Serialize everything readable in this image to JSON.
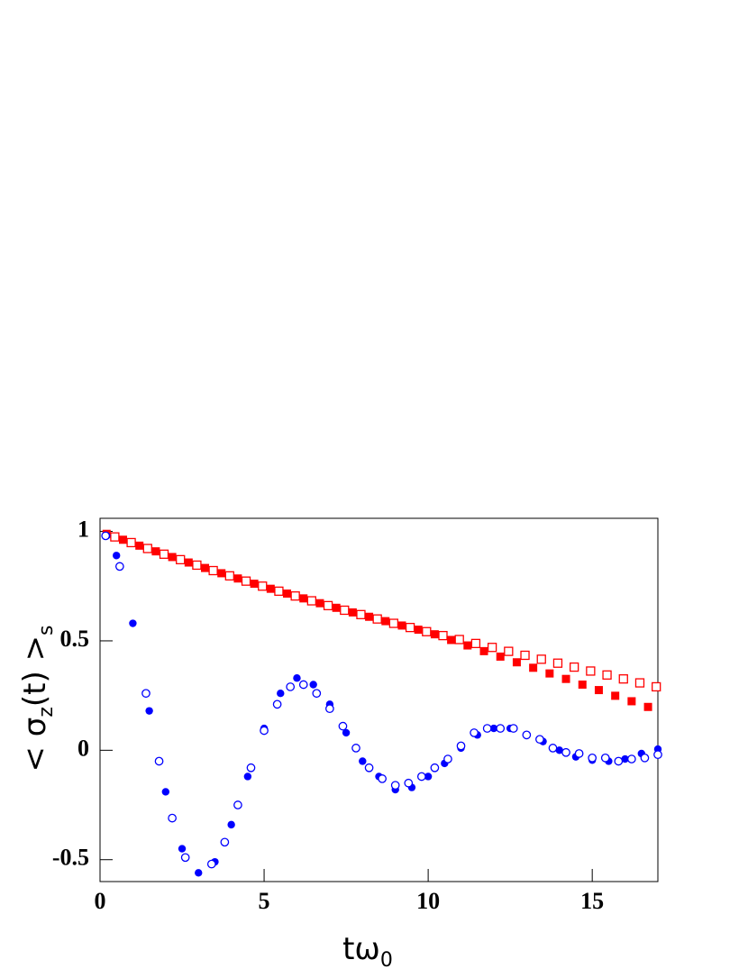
{
  "chart_data": {
    "type": "scatter",
    "x_label": [
      "tω",
      "0"
    ],
    "y_label": [
      "< σ",
      "z",
      "(t) >",
      "s"
    ],
    "xlim": [
      0,
      17
    ],
    "ylim": [
      -0.6,
      1.06
    ],
    "xticks": [
      0,
      5,
      10,
      15
    ],
    "yticks": [
      -0.5,
      0,
      0.5,
      1
    ],
    "series": [
      {
        "color": "#ff0000",
        "marker": "square",
        "filled": true,
        "x": [
          0.2,
          0.7,
          1.2,
          1.7,
          2.2,
          2.7,
          3.2,
          3.7,
          4.2,
          4.7,
          5.2,
          5.7,
          6.2,
          6.7,
          7.2,
          7.7,
          8.2,
          8.7,
          9.2,
          9.7,
          10.2,
          10.7,
          11.2,
          11.7,
          12.2,
          12.7,
          13.2,
          13.7,
          14.2,
          14.7,
          15.2,
          15.7,
          16.2,
          16.7
        ],
        "values": [
          0.989,
          0.962,
          0.935,
          0.909,
          0.883,
          0.858,
          0.833,
          0.809,
          0.785,
          0.761,
          0.738,
          0.716,
          0.694,
          0.672,
          0.651,
          0.63,
          0.61,
          0.59,
          0.57,
          0.551,
          0.53,
          0.504,
          0.479,
          0.453,
          0.428,
          0.402,
          0.377,
          0.351,
          0.326,
          0.3,
          0.275,
          0.249,
          0.224,
          0.198
        ]
      },
      {
        "color": "#ff0000",
        "marker": "square",
        "filled": false,
        "x": [
          0.45,
          0.95,
          1.45,
          1.95,
          2.45,
          2.95,
          3.45,
          3.95,
          4.45,
          4.95,
          5.45,
          5.95,
          6.45,
          6.95,
          7.45,
          7.95,
          8.45,
          8.95,
          9.45,
          9.95,
          10.45,
          10.95,
          11.45,
          11.95,
          12.45,
          12.95,
          13.45,
          13.95,
          14.45,
          14.95,
          15.45,
          15.95,
          16.45,
          16.95
        ],
        "values": [
          0.975,
          0.949,
          0.922,
          0.896,
          0.871,
          0.846,
          0.821,
          0.797,
          0.773,
          0.75,
          0.727,
          0.705,
          0.683,
          0.661,
          0.64,
          0.62,
          0.6,
          0.58,
          0.561,
          0.542,
          0.524,
          0.506,
          0.488,
          0.47,
          0.452,
          0.434,
          0.416,
          0.398,
          0.38,
          0.362,
          0.344,
          0.326,
          0.308,
          0.29
        ]
      },
      {
        "color": "#0000ff",
        "marker": "circle",
        "filled": true,
        "x": [
          0.2,
          0.5,
          1,
          1.5,
          2,
          2.5,
          3,
          3.5,
          4,
          4.5,
          5,
          5.5,
          6,
          6.5,
          7,
          7.5,
          8,
          8.5,
          9,
          9.5,
          10,
          10.5,
          11,
          11.5,
          12,
          12.5,
          13,
          13.5,
          14,
          14.5,
          15,
          15.5,
          16,
          16.5,
          17
        ],
        "values": [
          0.98,
          0.89,
          0.58,
          0.18,
          -0.19,
          -0.45,
          -0.56,
          -0.51,
          -0.34,
          -0.12,
          0.1,
          0.26,
          0.33,
          0.3,
          0.21,
          0.08,
          -0.05,
          -0.12,
          -0.18,
          -0.17,
          -0.12,
          -0.06,
          0.01,
          0.07,
          0.1,
          0.1,
          0.07,
          0.04,
          0,
          -0.03,
          -0.045,
          -0.05,
          -0.04,
          -0.015,
          0.005
        ]
      },
      {
        "color": "#0000ff",
        "marker": "circle",
        "filled": false,
        "x": [
          0.17,
          0.6,
          1.4,
          1.8,
          2.2,
          2.6,
          3.4,
          3.8,
          4.2,
          4.6,
          5,
          5.4,
          5.8,
          6.2,
          6.6,
          7,
          7.4,
          7.8,
          8.2,
          8.6,
          9,
          9.4,
          9.8,
          10.2,
          10.6,
          11,
          11.4,
          11.8,
          12.2,
          12.6,
          13,
          13.4,
          13.8,
          14.2,
          14.6,
          15,
          15.4,
          15.8,
          16.2,
          16.6,
          17
        ],
        "values": [
          0.98,
          0.84,
          0.26,
          -0.05,
          -0.31,
          -0.49,
          -0.52,
          -0.42,
          -0.25,
          -0.08,
          0.09,
          0.21,
          0.29,
          0.3,
          0.26,
          0.19,
          0.11,
          0.01,
          -0.08,
          -0.13,
          -0.16,
          -0.15,
          -0.12,
          -0.08,
          -0.04,
          0.02,
          0.08,
          0.1,
          0.1,
          0.1,
          0.07,
          0.05,
          0.01,
          -0.01,
          -0.015,
          -0.035,
          -0.035,
          -0.05,
          -0.04,
          -0.035,
          -0.02
        ]
      }
    ]
  }
}
